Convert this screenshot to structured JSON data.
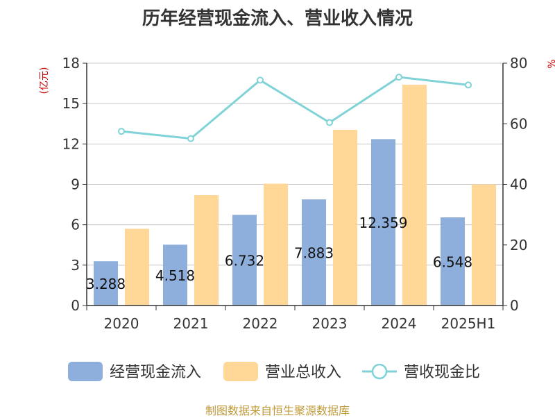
{
  "source": "制图数据来自恒生聚源数据库",
  "chart_data": {
    "type": "bar",
    "title": "历年经营现金流入、营业收入情况",
    "categories": [
      "2020",
      "2021",
      "2022",
      "2023",
      "2024",
      "2025H1"
    ],
    "series": [
      {
        "name": "经营现金流入",
        "type": "bar",
        "axis": "left",
        "color": "#8eaedb",
        "values": [
          3.288,
          4.518,
          6.732,
          7.883,
          12.359,
          6.548
        ]
      },
      {
        "name": "营业总收入",
        "type": "bar",
        "axis": "left",
        "color": "#ffd898",
        "values": [
          5.7,
          8.2,
          9.05,
          13.05,
          16.4,
          9.0
        ]
      },
      {
        "name": "营收现金比",
        "type": "line",
        "axis": "right",
        "color": "#7fd3d6",
        "values": [
          57.5,
          55.1,
          74.4,
          60.4,
          75.4,
          72.8
        ]
      }
    ],
    "data_labels": [
      "3.288",
      "4.518",
      "6.732",
      "7.883",
      "12.359",
      "6.548"
    ],
    "y_left": {
      "label": "(亿元)",
      "min": 0,
      "max": 18,
      "ticks": [
        "0",
        "3",
        "6",
        "9",
        "12",
        "15",
        "18"
      ]
    },
    "y_right": {
      "label": "%",
      "min": 0,
      "max": 80,
      "ticks": [
        "0",
        "20",
        "40",
        "60",
        "80"
      ]
    },
    "grid": true,
    "legend_position": "bottom"
  }
}
